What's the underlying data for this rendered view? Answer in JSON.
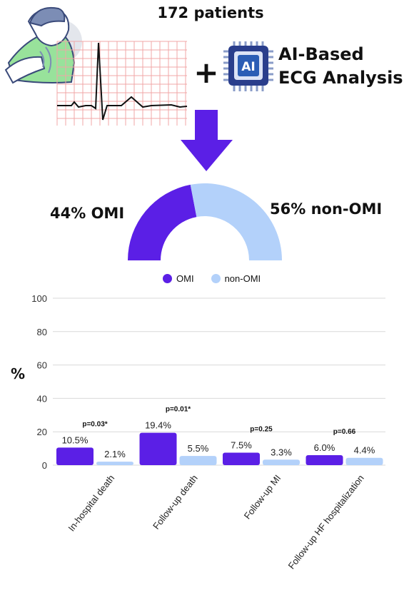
{
  "header": {
    "patient_count": "172 patients",
    "plus_symbol": "+",
    "chip_label": "AI",
    "ai_title_line1": "AI-Based",
    "ai_title_line2": "ECG Analysis"
  },
  "colors": {
    "omi": "#5B1FE6",
    "non_omi": "#B3D1FA",
    "arrow": "#5B1FE6",
    "grid": "#D9D9D9",
    "patient_shirt": "#98E29B",
    "ecg_grid": "#F0A7A7"
  },
  "chart_data": [
    {
      "type": "pie",
      "variant": "half-donut",
      "slices": [
        {
          "name": "OMI",
          "value": 44,
          "label": "44% OMI"
        },
        {
          "name": "non-OMI",
          "value": 56,
          "label": "56% non-OMI"
        }
      ],
      "legend": [
        "OMI",
        "non-OMI"
      ],
      "legend_position": "bottom"
    },
    {
      "type": "bar",
      "categories": [
        "In-hospital death",
        "Follow-up death",
        "Follow-up MI",
        "Follow-up HF hospitalization"
      ],
      "series": [
        {
          "name": "OMI",
          "values": [
            10.5,
            19.4,
            7.5,
            6.0
          ],
          "labels": [
            "10.5%",
            "19.4%",
            "7.5%",
            "6.0%"
          ]
        },
        {
          "name": "non-OMI",
          "values": [
            2.1,
            5.5,
            3.3,
            4.4
          ],
          "labels": [
            "2.1%",
            "5.5%",
            "3.3%",
            "4.4%"
          ]
        }
      ],
      "p_values": [
        "p=0.03*",
        "p=0.01*",
        "p=0.25",
        "p=0.66"
      ],
      "ylabel": "%",
      "ylim": [
        0,
        100
      ],
      "yticks": [
        0,
        20,
        40,
        60,
        80,
        100
      ],
      "grid": true
    }
  ]
}
